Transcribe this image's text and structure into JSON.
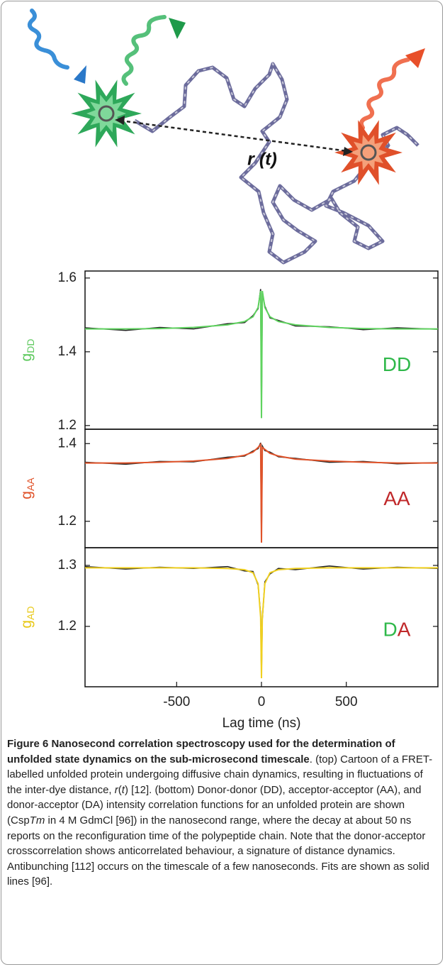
{
  "cartoon": {
    "distance_label": "r (t)"
  },
  "chart_data": [
    {
      "type": "line",
      "ylabel": {
        "text": "g",
        "sub": "DD",
        "color": "#5cc85c"
      },
      "annotation": [
        {
          "text": "DD",
          "color": "#2fb84a"
        }
      ],
      "x": [
        -1040,
        -800,
        -600,
        -400,
        -200,
        -100,
        -50,
        -20,
        -5,
        0,
        5,
        20,
        50,
        100,
        200,
        400,
        600,
        800,
        1040
      ],
      "series": [
        {
          "color": "#222222",
          "values": [
            1.465,
            1.458,
            1.466,
            1.462,
            1.476,
            1.479,
            1.498,
            1.517,
            1.57,
            1.23,
            1.56,
            1.524,
            1.492,
            1.485,
            1.47,
            1.468,
            1.46,
            1.465,
            1.461
          ]
        },
        {
          "color": "#5fd35f",
          "values": [
            1.462,
            1.462,
            1.463,
            1.466,
            1.473,
            1.482,
            1.495,
            1.52,
            1.565,
            1.22,
            1.565,
            1.52,
            1.495,
            1.482,
            1.473,
            1.466,
            1.463,
            1.462,
            1.462
          ]
        }
      ],
      "xlim": [
        -1040,
        1040
      ],
      "ylim": [
        1.19,
        1.619
      ],
      "yticks": [
        1.2,
        1.4,
        1.6
      ]
    },
    {
      "type": "line",
      "ylabel": {
        "text": "g",
        "sub": "AA",
        "color": "#e0532a"
      },
      "annotation": [
        {
          "text": "AA",
          "color": "#c0282a"
        }
      ],
      "x": [
        -1040,
        -800,
        -600,
        -400,
        -200,
        -100,
        -50,
        -20,
        -5,
        0,
        5,
        20,
        50,
        100,
        200,
        400,
        600,
        800,
        1040
      ],
      "series": [
        {
          "color": "#222222",
          "values": [
            1.352,
            1.347,
            1.354,
            1.353,
            1.365,
            1.368,
            1.381,
            1.387,
            1.402,
            1.15,
            1.394,
            1.382,
            1.378,
            1.366,
            1.362,
            1.352,
            1.354,
            1.348,
            1.351
          ]
        },
        {
          "color": "#e0532a",
          "values": [
            1.35,
            1.35,
            1.352,
            1.355,
            1.362,
            1.37,
            1.378,
            1.39,
            1.398,
            1.145,
            1.39,
            1.385,
            1.375,
            1.368,
            1.36,
            1.355,
            1.352,
            1.35,
            1.35
          ]
        }
      ],
      "xlim": [
        -1040,
        1040
      ],
      "ylim": [
        1.132,
        1.437
      ],
      "yticks": [
        1.2,
        1.4
      ]
    },
    {
      "type": "line",
      "ylabel": {
        "text": "g",
        "sub": "AD",
        "color": "#e8c818"
      },
      "annotation": [
        {
          "text": "D",
          "color": "#2fb84a"
        },
        {
          "text": "A",
          "color": "#c0282a"
        }
      ],
      "x": [
        -1040,
        -800,
        -600,
        -400,
        -200,
        -100,
        -50,
        -20,
        -5,
        0,
        5,
        20,
        50,
        100,
        200,
        400,
        600,
        800,
        1040
      ],
      "series": [
        {
          "color": "#222222",
          "values": [
            1.298,
            1.294,
            1.297,
            1.295,
            1.298,
            1.291,
            1.29,
            1.268,
            1.22,
            1.12,
            1.212,
            1.273,
            1.286,
            1.295,
            1.293,
            1.299,
            1.294,
            1.297,
            1.295
          ]
        },
        {
          "color": "#f0d020",
          "values": [
            1.296,
            1.296,
            1.296,
            1.296,
            1.295,
            1.293,
            1.288,
            1.27,
            1.215,
            1.115,
            1.215,
            1.27,
            1.288,
            1.293,
            1.295,
            1.296,
            1.296,
            1.296,
            1.296
          ]
        }
      ],
      "xlim": [
        -1040,
        1040
      ],
      "ylim": [
        1.101,
        1.329
      ],
      "yticks": [
        1.2,
        1.3
      ],
      "xticks": [
        -500,
        0,
        500
      ],
      "xlabel": "Lag time (ns)"
    }
  ],
  "caption": {
    "title": "Figure 6 Nanosecond correlation spectroscopy used for the determination of unfolded state dynamics on the sub-microsecond timescale",
    "text": [
      ". (top) Cartoon of a FRET-labelled unfolded protein undergoing diffusive chain dynamics, resulting in fluctuations of the inter-dye distance, ",
      "r",
      "(",
      "t",
      ") [12]. (bottom) Donor-donor (DD), acceptor-acceptor (AA), and donor-acceptor (DA) intensity correlation functions for an unfolded protein are shown (Csp",
      "Tm",
      " in 4 M GdmCl [96]) in the nanosecond range, where the decay at about 50 ns reports on the reconfiguration time of the polypeptide chain. Note that the donor-acceptor crosscorrelation shows anticorrelated behaviour, a signature of distance dynamics. Antibunching [112] occurs on the timescale of a few nanoseconds. Fits are shown as solid lines [96]."
    ]
  }
}
